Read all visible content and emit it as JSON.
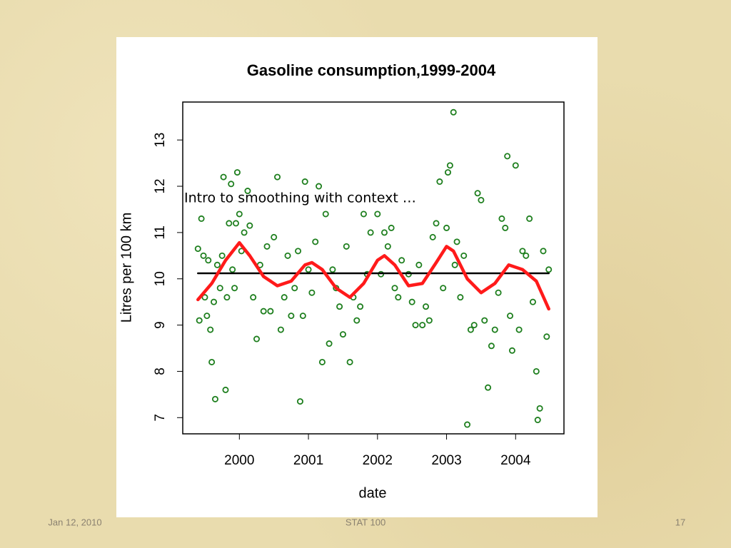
{
  "chart_data": {
    "type": "scatter",
    "title": "Gasoline consumption,1999-2004",
    "xlabel": "date",
    "ylabel": "Litres per 100 km",
    "xlim": [
      1999.18,
      2004.7
    ],
    "ylim": [
      6.65,
      13.82
    ],
    "xticks": [
      2000,
      2001,
      2002,
      2003,
      2004
    ],
    "yticks": [
      7,
      8,
      9,
      10,
      11,
      12,
      13
    ],
    "color": "#1e7f1e",
    "x": [
      1999.4,
      1999.42,
      1999.45,
      1999.48,
      1999.5,
      1999.53,
      1999.55,
      1999.58,
      1999.6,
      1999.63,
      1999.65,
      1999.68,
      1999.72,
      1999.75,
      1999.77,
      1999.8,
      1999.82,
      1999.85,
      1999.88,
      1999.9,
      1999.93,
      1999.95,
      1999.97,
      2000.0,
      2000.03,
      2000.07,
      2000.12,
      2000.15,
      2000.2,
      2000.25,
      2000.3,
      2000.35,
      2000.4,
      2000.45,
      2000.5,
      2000.55,
      2000.6,
      2000.65,
      2000.7,
      2000.75,
      2000.8,
      2000.85,
      2000.88,
      2000.92,
      2000.95,
      2001.0,
      2001.05,
      2001.1,
      2001.15,
      2001.2,
      2001.25,
      2001.3,
      2001.35,
      2001.4,
      2001.45,
      2001.5,
      2001.55,
      2001.6,
      2001.65,
      2001.7,
      2001.75,
      2001.8,
      2001.85,
      2001.9,
      2002.0,
      2002.05,
      2002.1,
      2002.15,
      2002.2,
      2002.25,
      2002.3,
      2002.35,
      2002.45,
      2002.5,
      2002.55,
      2002.6,
      2002.65,
      2002.7,
      2002.75,
      2002.8,
      2002.85,
      2002.9,
      2002.95,
      2003.0,
      2003.02,
      2003.05,
      2003.1,
      2003.12,
      2003.15,
      2003.2,
      2003.25,
      2003.3,
      2003.35,
      2003.4,
      2003.45,
      2003.5,
      2003.55,
      2003.6,
      2003.65,
      2003.7,
      2003.75,
      2003.8,
      2003.85,
      2003.88,
      2003.92,
      2003.95,
      2004.0,
      2004.05,
      2004.1,
      2004.15,
      2004.2,
      2004.25,
      2004.3,
      2004.32,
      2004.35,
      2004.4,
      2004.45,
      2004.48
    ],
    "values": [
      10.65,
      9.1,
      11.3,
      10.5,
      9.6,
      9.2,
      10.4,
      8.9,
      8.2,
      9.5,
      7.4,
      10.3,
      9.8,
      10.5,
      12.2,
      7.6,
      9.6,
      11.2,
      12.05,
      10.2,
      9.8,
      11.2,
      12.3,
      11.4,
      10.6,
      11.0,
      11.9,
      11.15,
      9.6,
      8.7,
      10.3,
      9.3,
      10.7,
      9.3,
      10.9,
      12.2,
      8.9,
      9.6,
      10.5,
      9.2,
      9.8,
      10.6,
      7.35,
      9.2,
      12.1,
      10.2,
      9.7,
      10.8,
      12.0,
      8.2,
      11.4,
      8.6,
      10.2,
      9.8,
      9.4,
      8.8,
      10.7,
      8.2,
      9.6,
      9.1,
      9.4,
      11.4,
      10.1,
      11.0,
      11.4,
      10.1,
      11.0,
      10.7,
      11.1,
      9.8,
      9.6,
      10.4,
      10.1,
      9.5,
      9.0,
      10.3,
      9.0,
      9.4,
      9.1,
      10.9,
      11.2,
      12.1,
      9.8,
      11.1,
      12.3,
      12.45,
      13.6,
      10.3,
      10.8,
      9.6,
      10.5,
      6.85,
      8.9,
      9.0,
      11.85,
      11.7,
      9.1,
      7.65,
      8.55,
      8.9,
      9.7,
      11.3,
      11.1,
      12.65,
      9.2,
      8.45,
      12.45,
      8.9,
      10.6,
      10.5,
      11.3,
      9.5,
      8.0,
      6.95,
      7.2,
      10.6,
      8.75,
      10.2
    ],
    "lines": [
      {
        "color": "#000000",
        "x": [
          1999.4,
          2004.48
        ],
        "values": [
          10.12,
          10.12
        ]
      },
      {
        "color": "#ff1a1a",
        "x": [
          1999.4,
          1999.6,
          1999.8,
          2000.0,
          2000.15,
          2000.35,
          2000.55,
          2000.75,
          2000.95,
          2001.05,
          2001.2,
          2001.4,
          2001.6,
          2001.8,
          2002.0,
          2002.1,
          2002.25,
          2002.45,
          2002.65,
          2002.85,
          2003.0,
          2003.1,
          2003.3,
          2003.5,
          2003.7,
          2003.9,
          2004.1,
          2004.3,
          2004.48
        ],
        "values": [
          9.55,
          9.9,
          10.4,
          10.78,
          10.5,
          10.05,
          9.85,
          9.95,
          10.3,
          10.35,
          10.2,
          9.8,
          9.6,
          9.9,
          10.4,
          10.5,
          10.3,
          9.85,
          9.9,
          10.35,
          10.7,
          10.6,
          10.0,
          9.7,
          9.9,
          10.3,
          10.2,
          9.95,
          9.35
        ]
      }
    ]
  },
  "slide": {
    "overlay": "Intro to smoothing with context …",
    "date": "Jan 12, 2010",
    "course": "STAT 100",
    "page": "17"
  }
}
